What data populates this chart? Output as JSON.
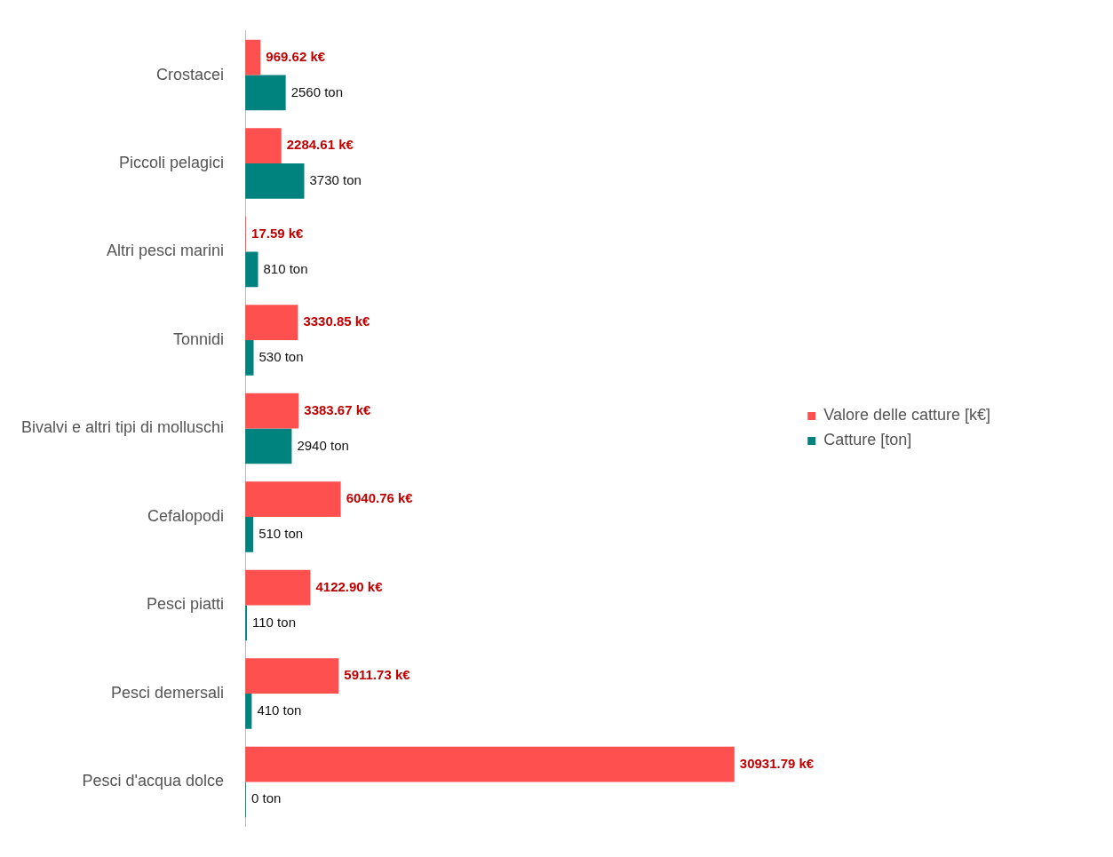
{
  "chart_data": {
    "type": "bar",
    "orientation": "horizontal",
    "categories": [
      "Crostacei",
      "Piccoli pelagici",
      "Altri pesci marini",
      "Tonnidi",
      "Bivalvi e altri tipi di molluschi",
      "Cefalopodi",
      "Pesci piatti",
      "Pesci demersali",
      "Pesci d'acqua dolce"
    ],
    "series": [
      {
        "name": "Valore delle catture [k€]",
        "color": "#ff5050",
        "values": [
          969.62,
          2284.61,
          17.59,
          3330.85,
          3383.67,
          6040.76,
          4122.9,
          5911.73,
          30931.79
        ],
        "value_labels": [
          "969.62 k€",
          "2284.61 k€",
          "17.59 k€",
          "3330.85 k€",
          "3383.67 k€",
          "6040.76 k€",
          "4122.90 k€",
          "5911.73 k€",
          "30931.79 k€"
        ]
      },
      {
        "name": "Catture [ton]",
        "color": "#00827f",
        "values": [
          2560,
          3730,
          810,
          530,
          2940,
          510,
          110,
          410,
          0
        ],
        "value_labels": [
          "2560 ton",
          "3730 ton",
          "810 ton",
          "530 ton",
          "2940 ton",
          "510 ton",
          "110 ton",
          "410 ton",
          "0 ton"
        ]
      }
    ],
    "legend": "right",
    "grid": false
  }
}
